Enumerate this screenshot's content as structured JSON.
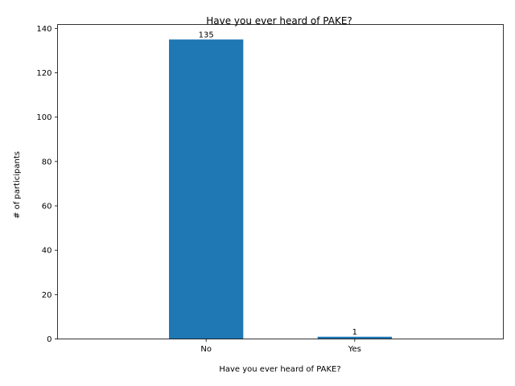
{
  "chart_data": {
    "type": "bar",
    "title": "Have you ever heard of PAKE?",
    "xlabel": "Have you ever heard of PAKE?",
    "ylabel": "# of participants",
    "categories": [
      "No",
      "Yes"
    ],
    "values": [
      135,
      1
    ],
    "data_labels": [
      "135",
      "1"
    ],
    "ylim": [
      0,
      141.75
    ],
    "yticks": [
      0,
      20,
      40,
      60,
      80,
      100,
      120,
      140
    ],
    "grid": false,
    "legend": "none",
    "bar_color": "#1f77b4"
  }
}
